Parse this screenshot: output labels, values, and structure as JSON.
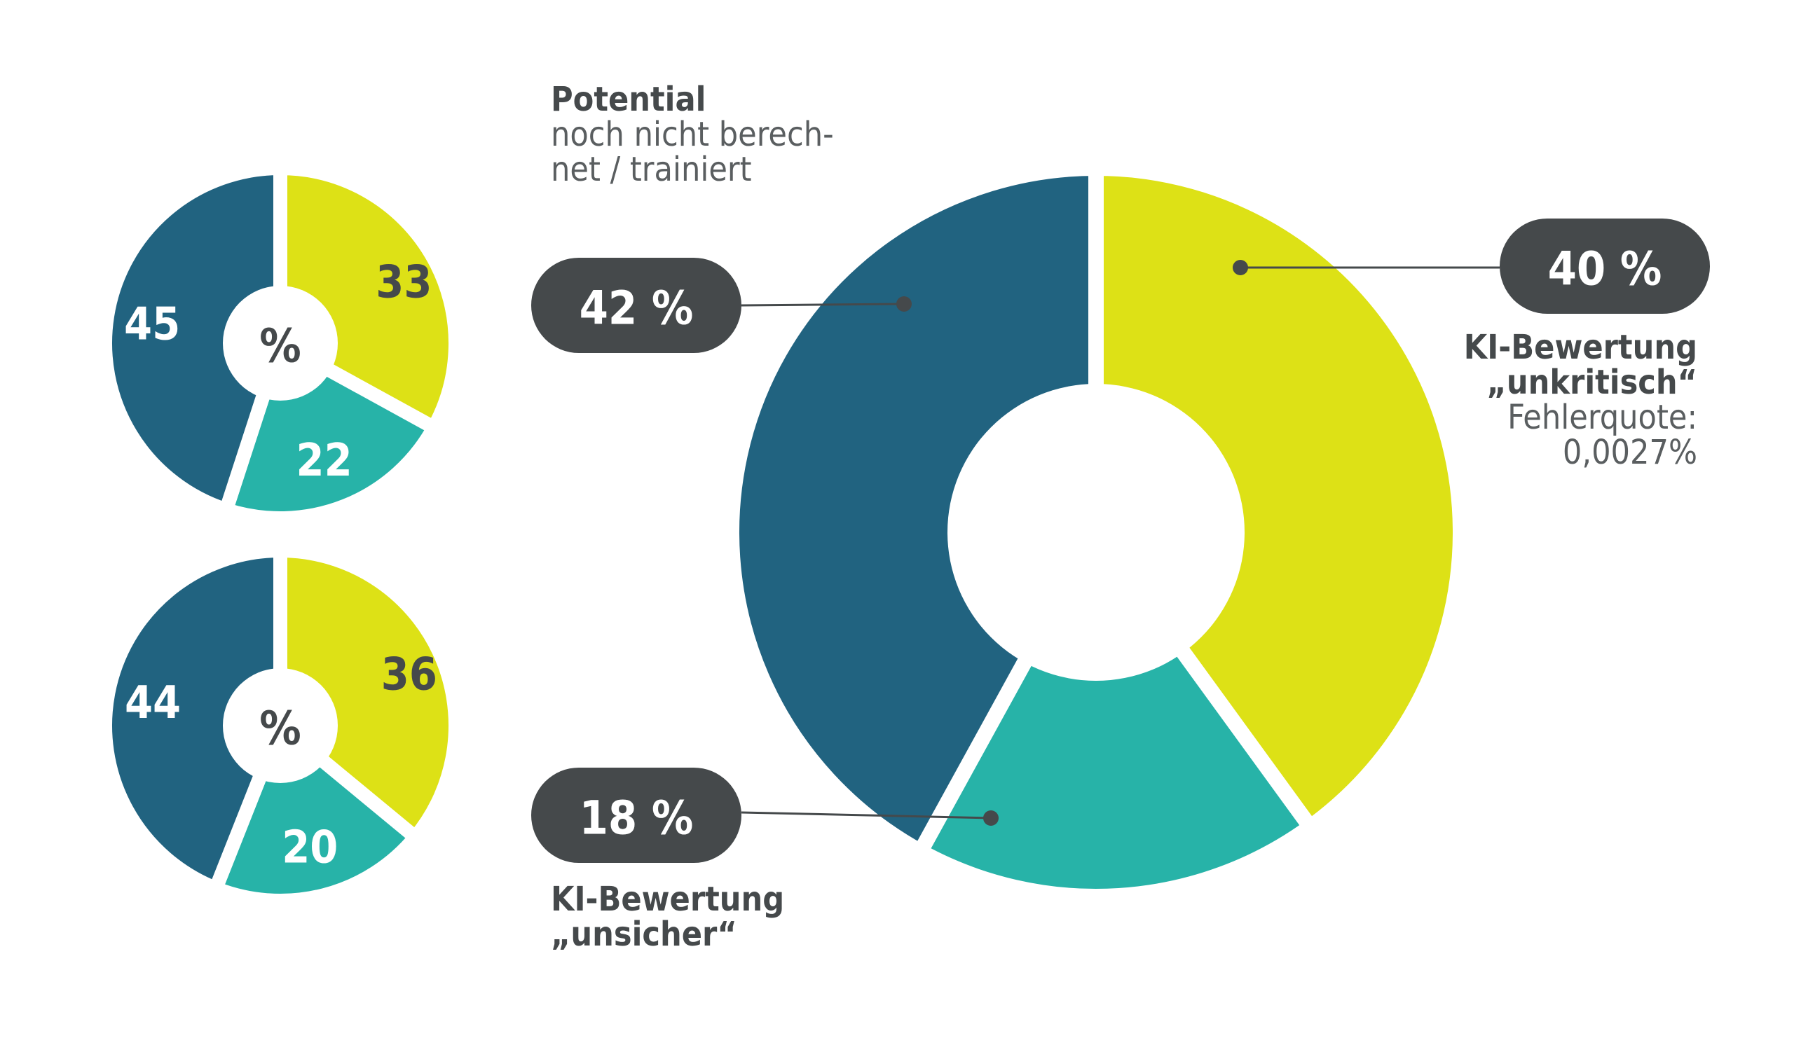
{
  "colors": {
    "yellow": "#dde116",
    "teal": "#27b3a8",
    "navy": "#216380",
    "dark": "#45494b",
    "white": "#ffffff"
  },
  "chart_data": [
    {
      "type": "pie",
      "variant": "donut",
      "center_label": "%",
      "slices": [
        {
          "value": 33,
          "label": "33",
          "color": "yellow"
        },
        {
          "value": 22,
          "label": "22",
          "color": "teal"
        },
        {
          "value": 45,
          "label": "45",
          "color": "navy"
        }
      ]
    },
    {
      "type": "pie",
      "variant": "donut",
      "center_label": "%",
      "slices": [
        {
          "value": 36,
          "label": "36",
          "color": "yellow"
        },
        {
          "value": 20,
          "label": "20",
          "color": "teal"
        },
        {
          "value": 44,
          "label": "44",
          "color": "navy"
        }
      ]
    },
    {
      "type": "pie",
      "variant": "donut",
      "slices": [
        {
          "value": 40,
          "label": "40 %",
          "color": "yellow",
          "caption_bold": [
            "KI-Bewertung",
            "„unkritisch“"
          ],
          "caption_light": [
            "Fehlerquote:",
            "0,0027%"
          ]
        },
        {
          "value": 18,
          "label": "18 %",
          "color": "teal",
          "caption_bold": [
            "KI-Bewertung",
            "„unsicher“"
          ],
          "caption_light": []
        },
        {
          "value": 42,
          "label": "42 %",
          "color": "navy",
          "caption_bold": [
            "Potential"
          ],
          "caption_light": [
            "noch nicht berech-",
            "net / trainiert"
          ]
        }
      ]
    }
  ]
}
